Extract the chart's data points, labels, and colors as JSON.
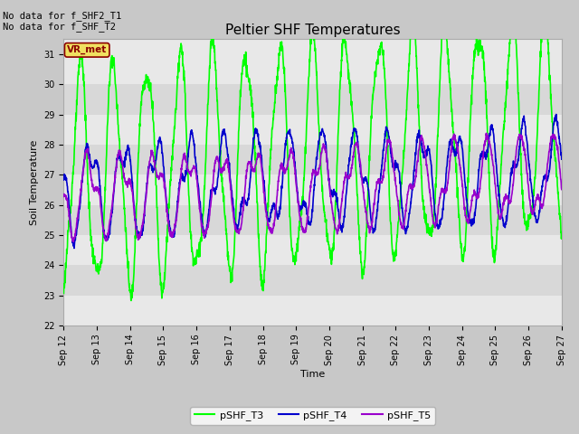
{
  "title": "Peltier SHF Temperatures",
  "xlabel": "Time",
  "ylabel": "Soil Temperature",
  "xlim_days": [
    12,
    27
  ],
  "ylim": [
    22.0,
    31.5
  ],
  "yticks": [
    22.0,
    23.0,
    24.0,
    25.0,
    26.0,
    27.0,
    28.0,
    29.0,
    30.0,
    31.0
  ],
  "xtick_labels": [
    "Sep 12",
    "Sep 13",
    "Sep 14",
    "Sep 15",
    "Sep 16",
    "Sep 17",
    "Sep 18",
    "Sep 19",
    "Sep 20",
    "Sep 21",
    "Sep 22",
    "Sep 23",
    "Sep 24",
    "Sep 25",
    "Sep 26",
    "Sep 27"
  ],
  "colors": {
    "pSHF_T3": "#00ff00",
    "pSHF_T4": "#0000cd",
    "pSHF_T5": "#9900cc"
  },
  "legend_labels": [
    "pSHF_T3",
    "pSHF_T4",
    "pSHF_T5"
  ],
  "annotation_text": "No data for f_SHF2_T1\nNo data for f_SHF_T2",
  "vr_met_label": "VR_met",
  "fig_bg": "#c8c8c8",
  "plot_bg_light": "#e8e8e8",
  "plot_bg_dark": "#d8d8d8",
  "line_width": 1.2,
  "title_fontsize": 11,
  "tick_fontsize": 7,
  "label_fontsize": 8,
  "legend_fontsize": 8,
  "annotation_fontsize": 7.5
}
